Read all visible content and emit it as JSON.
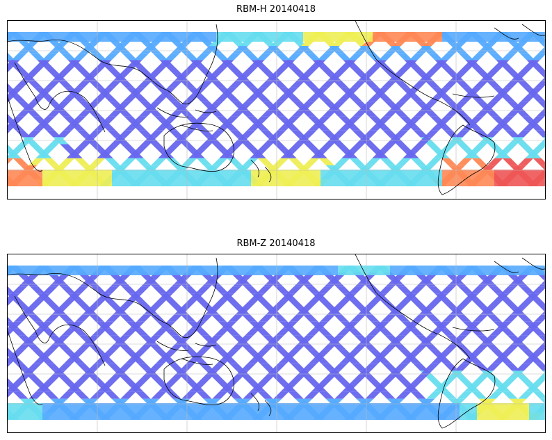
{
  "panels": [
    {
      "title": "RBM-H 20140418",
      "variant": "H"
    },
    {
      "title": "RBM-Z 20140418",
      "variant": "Z"
    }
  ],
  "colors": {
    "low": "#6666ee",
    "mid_low": "#55aaff",
    "mid": "#66ddee",
    "mid_high": "#eeee55",
    "high": "#ff8855",
    "very_high": "#ee5555",
    "coastline": "#000000",
    "grid": "#bbbbbb",
    "background": "#ffffff"
  },
  "icons": [
    "coastline-map",
    "swath-overlay"
  ]
}
